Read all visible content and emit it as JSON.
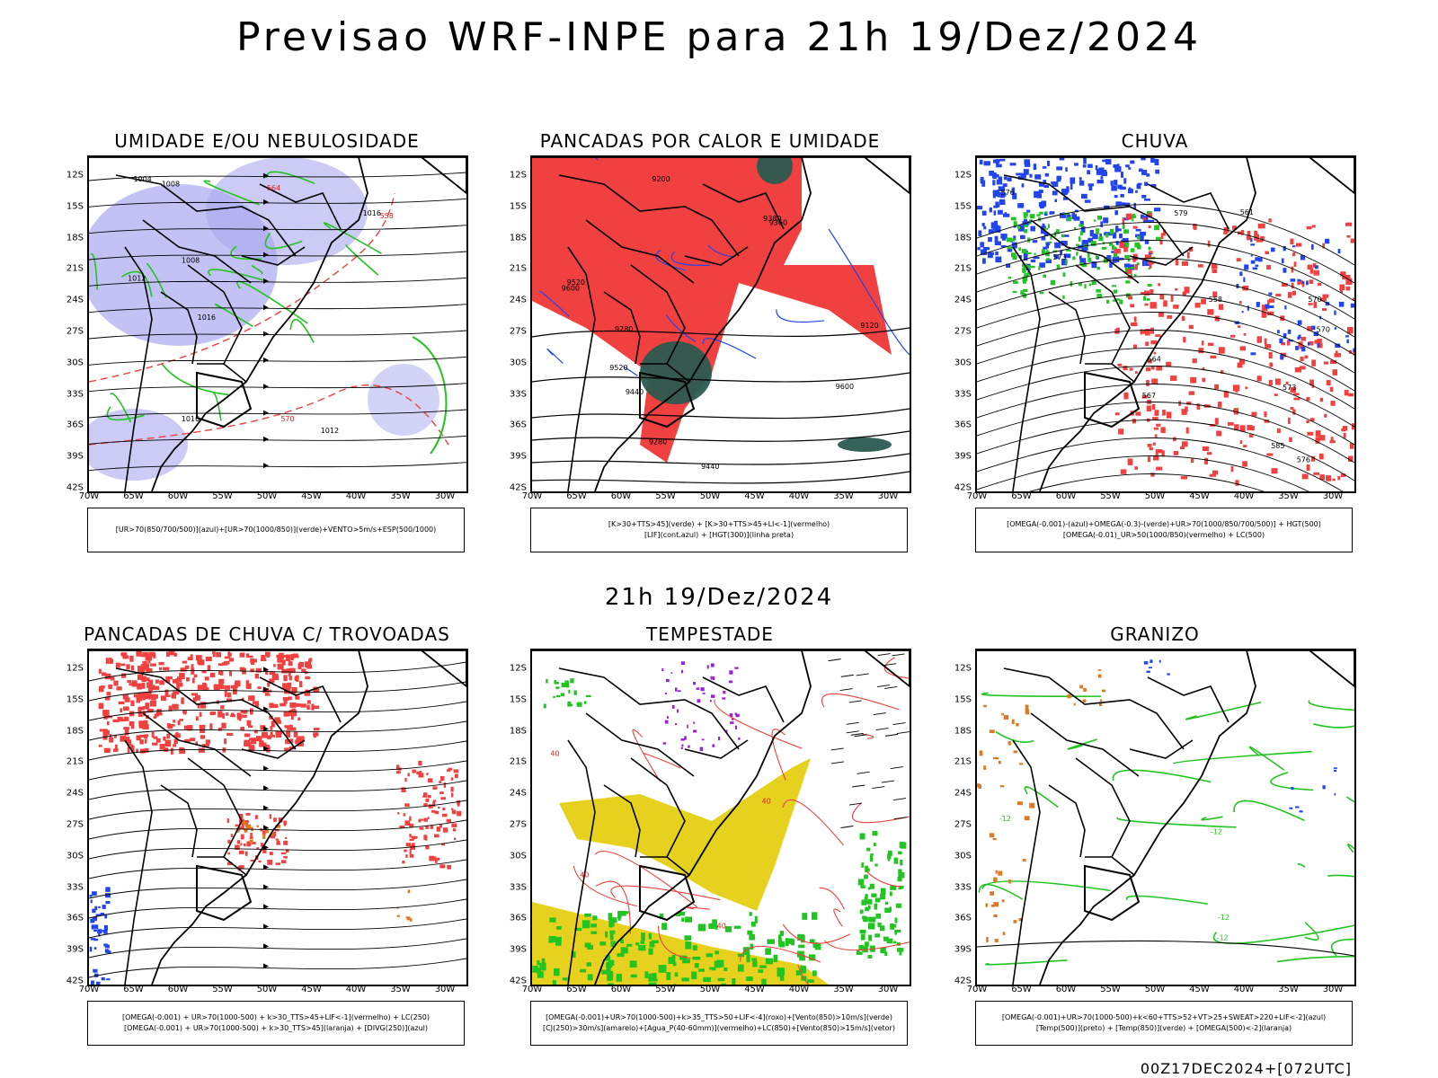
{
  "header": {
    "main_title": "Previsao WRF-INPE  para 21h 19/Dez/2024",
    "mid_title": "21h 19/Dez/2024",
    "footer_stamp": "00Z17DEC2024+[072UTC]"
  },
  "axes": {
    "lat_labels": [
      "12S",
      "15S",
      "18S",
      "21S",
      "24S",
      "27S",
      "30S",
      "33S",
      "36S",
      "39S",
      "42S"
    ],
    "lon_labels": [
      "70W",
      "65W",
      "60W",
      "55W",
      "50W",
      "45W",
      "40W",
      "35W",
      "30W"
    ]
  },
  "panels": [
    {
      "title": "UMIDADE E/OU NEBULOSIDADE",
      "legend_lines": [
        "[UR>70(850/700/500)](azul)+[UR>70(1000/850)](verde)+VENTO>5m/s+ESP(500/1000)"
      ],
      "labels": [
        "1012",
        "1016",
        "1008",
        "1004",
        "570",
        "558",
        "564",
        "1016",
        "1012",
        "1008",
        "1016"
      ]
    },
    {
      "title": "PANCADAS POR CALOR E UMIDADE",
      "legend_lines": [
        "[K>30+TTS>45](verde) + [K>30+TTS>45+LI<-1](vermelho)",
        "[LIF](cont.azul) + [HGT(300)](linha preta)"
      ],
      "labels": [
        "9600",
        "9520",
        "9440",
        "9380",
        "9360",
        "9280",
        "9200",
        "9120",
        "9600",
        "9520",
        "9440",
        "9280"
      ]
    },
    {
      "title": "CHUVA",
      "legend_lines": [
        "[OMEGA(-0.001)-(azul)+OMEGA(-0.3)-(verde)+UR>70(1000/850/700/500)] + HGT(500)",
        "[OMEGA(-0.01)_UR>50(1000/850)(vermelho) + LC(500)"
      ],
      "labels": [
        "585",
        "579",
        "576",
        "573",
        "570",
        "567",
        "564",
        "561",
        "558",
        "576",
        "573",
        "570"
      ]
    },
    {
      "title": "PANCADAS DE CHUVA C/ TROVOADAS",
      "legend_lines": [
        "[OMEGA(-0.001) + UR>70(1000-500) + k>30_TTS>45+LIF<-1](vermelho) + LC(250)",
        "[OMEGA(-0.001) + UR>70(1000-500) + k>30_TTS>45](laranja) + [DIVG(250)](azul)"
      ],
      "labels": []
    },
    {
      "title": "TEMPESTADE",
      "legend_lines": [
        "[OMEGA(-0.001)+UR>70(1000-500)+k>35_TTS>50+LIF<-4](roxo)+[Vento(850)>10m/s](verde)",
        "[CJ(250)>30m/s](amarelo)+[Agua_P(40-60mm)](vermelho)+LC(850)+[Vento(850)>15m/s](vetor)"
      ],
      "labels": [
        "40",
        "40",
        "40",
        "40"
      ]
    },
    {
      "title": "GRANIZO",
      "legend_lines": [
        "[OMEGA(-0.001)+UR>70(1000-500)+k<60+TTS>52+VT>25+SWEAT>220+LIF<-2](azul)",
        "[Temp(500)](preto) + [Temp(850)](verde) + [OMEGA(500)<-2](laranja)"
      ],
      "labels": [
        "-12",
        "-12",
        "-12",
        "-12"
      ]
    }
  ],
  "colors": {
    "red": "#f04040",
    "green": "#22c422",
    "blue": "#2244ee",
    "lavender": "#a8a8f0",
    "darkteal": "#2a5a50",
    "yellow": "#e6d21e",
    "orange": "#e07820",
    "purple": "#9a20d8"
  }
}
